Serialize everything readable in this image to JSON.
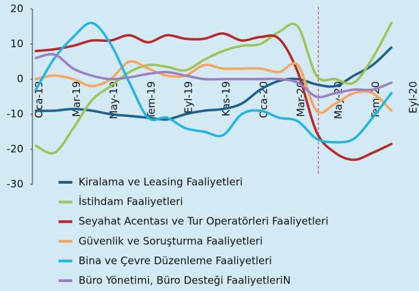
{
  "chart_data": {
    "type": "line",
    "categories": [
      "Oca-19",
      null,
      "Mar-19",
      null,
      "May-19",
      null,
      "Tem-19",
      null,
      "Eyl-19",
      null,
      "Kas-19",
      null,
      "Oca-20",
      null,
      "Mar-20",
      null,
      "May-20",
      null,
      "Tem-20",
      null,
      "Eyl-20"
    ],
    "ylim": [
      -30,
      20
    ],
    "yticks": [
      -30,
      -20,
      -10,
      0,
      10,
      20
    ],
    "series": [
      {
        "name": "Kiralama ve Leasing Faaliyetleri",
        "color": "#1f5f8b",
        "values": [
          -9,
          -9,
          -8.5,
          -9,
          -10,
          -10.5,
          -11,
          -11.5,
          -10,
          -9,
          -8.5,
          -7,
          -3,
          -0.5,
          0,
          -1.5,
          -2,
          1,
          4,
          9,
          null
        ]
      },
      {
        "name": "İstihdam Faaliyetleri",
        "color": "#9dc35a",
        "values": [
          -19,
          -21,
          -14,
          -6,
          -2,
          2,
          4,
          3.5,
          2.5,
          5.5,
          8,
          9.5,
          10,
          13.5,
          15,
          1,
          0,
          -1,
          6,
          16,
          null
        ]
      },
      {
        "name": "Seyahat Acentası ve Tur Operatörleri Faaliyetleri",
        "color": "#b5292a",
        "values": [
          8,
          8.5,
          9.5,
          11,
          11,
          12.5,
          10.5,
          12.5,
          11.5,
          11.5,
          13,
          11,
          12,
          11.5,
          2,
          -15,
          -21,
          -23,
          -21,
          -18.5,
          null
        ]
      },
      {
        "name": "Güvenlik ve Soruşturma Faaliyetleri",
        "color": "#f5a55f",
        "values": [
          0,
          1,
          0,
          -2,
          0,
          5,
          3,
          1,
          1,
          4,
          3,
          3,
          3,
          2,
          4,
          -9,
          -7,
          -4,
          -4,
          -9,
          null
        ]
      },
      {
        "name": "Bina ve Çevre Düzenleme Faaliyetleri",
        "color": "#22b5e0",
        "values": [
          -3,
          6,
          12,
          16,
          10,
          -1,
          -11,
          -11,
          -14,
          -15,
          -16,
          -10,
          -9,
          -11,
          -12,
          -17,
          -18,
          -17,
          -11,
          -4,
          null
        ]
      },
      {
        "name": "Büro Yönetimi, Büro Desteği FaaliyetleriN",
        "color": "#9a7fc1",
        "values": [
          6,
          7,
          3,
          1,
          0,
          0.5,
          1.5,
          2,
          1,
          0,
          0,
          0,
          0,
          0,
          -1,
          -5,
          -4,
          -3,
          -3,
          -1,
          null
        ]
      }
    ]
  }
}
